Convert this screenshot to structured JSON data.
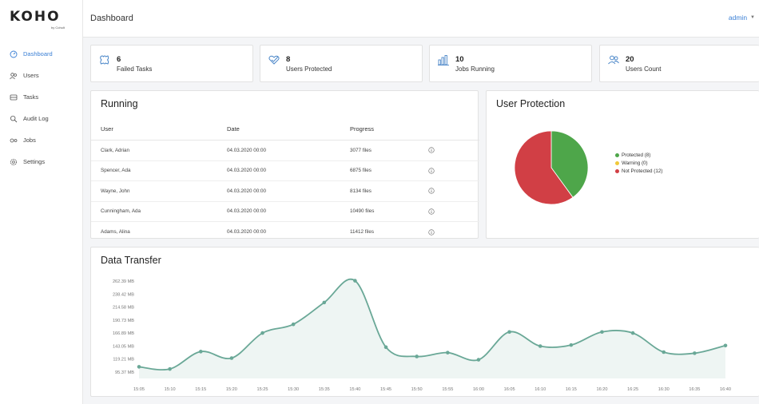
{
  "app": {
    "logo_text": "KOHO",
    "logo_sub": "by Cohult"
  },
  "sidebar": {
    "items": [
      {
        "label": "Dashboard",
        "icon": "dashboard-icon",
        "active": true
      },
      {
        "label": "Users",
        "icon": "users-icon",
        "active": false
      },
      {
        "label": "Tasks",
        "icon": "tasks-icon",
        "active": false
      },
      {
        "label": "Audit Log",
        "icon": "audit-log-icon",
        "active": false
      },
      {
        "label": "Jobs",
        "icon": "jobs-icon",
        "active": false
      },
      {
        "label": "Settings",
        "icon": "settings-icon",
        "active": false
      }
    ]
  },
  "header": {
    "title": "Dashboard",
    "user": "admin"
  },
  "stats": [
    {
      "value": "6",
      "label": "Failed Tasks",
      "icon": "puzzle-icon"
    },
    {
      "value": "8",
      "label": "Users Protected",
      "icon": "check-heart-icon"
    },
    {
      "value": "10",
      "label": "Jobs Running",
      "icon": "bar-chart-icon"
    },
    {
      "value": "20",
      "label": "Users Count",
      "icon": "users-group-icon"
    }
  ],
  "running": {
    "title": "Running",
    "columns": [
      "User",
      "Date",
      "Progress"
    ],
    "rows": [
      {
        "user": "Clark, Adrian",
        "date": "04.03.2020 00:00",
        "progress": "3077 files"
      },
      {
        "user": "Spencer, Ada",
        "date": "04.03.2020 00:00",
        "progress": "6875 files"
      },
      {
        "user": "Wayne, John",
        "date": "04.03.2020 00:00",
        "progress": "8134 files"
      },
      {
        "user": "Cunningham, Ada",
        "date": "04.03.2020 00:00",
        "progress": "10490 files"
      },
      {
        "user": "Adams, Alina",
        "date": "04.03.2020 00:00",
        "progress": "11412 files"
      }
    ]
  },
  "protection": {
    "title": "User Protection",
    "colors": {
      "protected": "#4ea64a",
      "warning": "#f0c93a",
      "not_protected": "#d13f45"
    },
    "legend": [
      "Protected (8)",
      "Warning (0)",
      "Not Protected (12)"
    ],
    "values": [
      8,
      0,
      12
    ]
  },
  "transfer": {
    "title": "Data Transfer"
  },
  "chart_data": {
    "type": "area",
    "title": "Data Transfer",
    "xlabel": "",
    "ylabel": "",
    "x": [
      "15:05",
      "15:10",
      "15:15",
      "15:20",
      "15:25",
      "15:30",
      "15:35",
      "15:40",
      "15:45",
      "15:50",
      "15:55",
      "16:00",
      "16:05",
      "16:10",
      "16:15",
      "16:20",
      "16:25",
      "16:30",
      "16:35",
      "16:40"
    ],
    "y_tick_labels": [
      "262.39 MB",
      "238.42 MB",
      "214.58 MB",
      "190.73 MB",
      "166.89 MB",
      "143.05 MB",
      "119.21 MB",
      "95.37 MB"
    ],
    "ylim": [
      95.37,
      262.39
    ],
    "series": [
      {
        "values": [
          105,
          101,
          133,
          121,
          167,
          183,
          223,
          263,
          141,
          124,
          131,
          118,
          169,
          143,
          145,
          169,
          167,
          132,
          130,
          144
        ]
      }
    ],
    "line_color": "#6aa897",
    "grid": false
  }
}
